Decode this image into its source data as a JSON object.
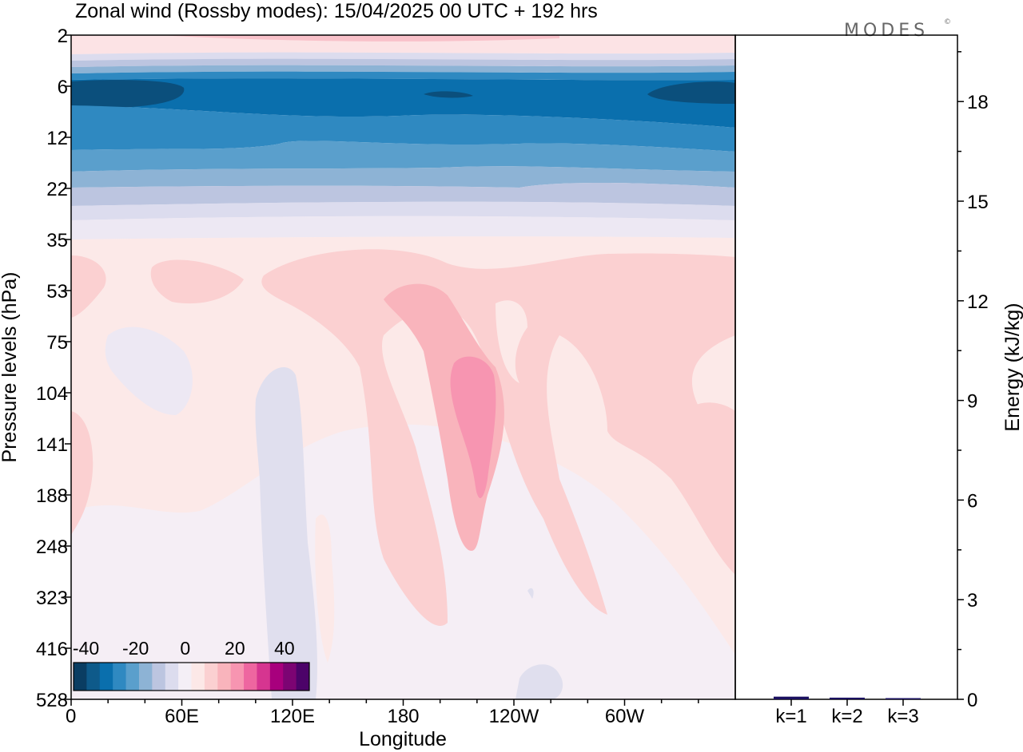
{
  "title": "Zonal wind (Rossby modes):  15/04/2025  00 UTC  + 192 hrs",
  "logo": {
    "text": "MODES",
    "mark": "©"
  },
  "chart_data": [
    {
      "type": "heatmap",
      "xlabel": "Longitude",
      "ylabel": "Pressure levels (hPa)",
      "x_ticks": [
        "0",
        "60E",
        "120E",
        "180",
        "120W",
        "60W"
      ],
      "x_tick_degrees": [
        0,
        60,
        120,
        180,
        240,
        300
      ],
      "x_range_degrees": [
        0,
        360
      ],
      "y_ticks": [
        "2",
        "6",
        "12",
        "22",
        "35",
        "53",
        "75",
        "104",
        "141",
        "188",
        "248",
        "323",
        "416",
        "528"
      ],
      "y_scale": "level index (top 2 hPa to bottom 528 hPa)",
      "colorbar": {
        "tick_labels": [
          "-40",
          "-20",
          "0",
          "20",
          "40"
        ],
        "tick_values": [
          -40,
          -20,
          0,
          20,
          40
        ],
        "range": [
          -45,
          50
        ],
        "colors": [
          "#0a3d62",
          "#0e5a8a",
          "#0a6fad",
          "#2f89c1",
          "#5a9fcc",
          "#8db3d5",
          "#bcc5e0",
          "#dcdcee",
          "#f4eff6",
          "#fce8e7",
          "#fbd0d1",
          "#f9b4bc",
          "#f795b1",
          "#ee66a0",
          "#d63590",
          "#a8007d",
          "#7c0473",
          "#4c0369"
        ]
      },
      "notes_bands": [
        {
          "level_from": "2",
          "level_to": "4",
          "value_range": [
            5,
            15
          ]
        },
        {
          "level_from": "6",
          "level_to": "12",
          "value_range": [
            -45,
            -25
          ]
        },
        {
          "level_from": "12",
          "level_to": "28",
          "value_range": [
            -25,
            -5
          ]
        },
        {
          "level_from": "35",
          "level_to": "528",
          "value_range": [
            -5,
            25
          ]
        }
      ]
    },
    {
      "type": "bar",
      "categories": [
        "k=1",
        "k=2",
        "k=3"
      ],
      "values": [
        0.08,
        0.05,
        0.03
      ],
      "ylabel": "Energy (kJ/kg)",
      "y_ticks": [
        "0",
        "3",
        "6",
        "9",
        "12",
        "15",
        "18"
      ],
      "y_tick_values": [
        0,
        3,
        6,
        9,
        12,
        15,
        18
      ],
      "ylim": [
        0,
        20
      ],
      "bar_color": "#1a1060"
    }
  ]
}
